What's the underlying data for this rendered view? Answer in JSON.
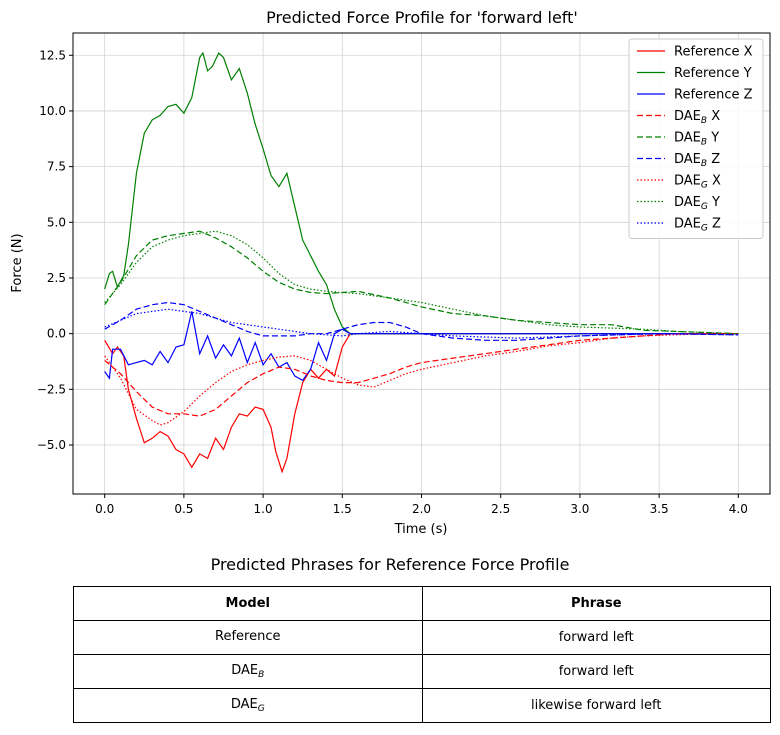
{
  "chart_data": {
    "type": "line",
    "title": "Predicted Force Profile for 'forward left'",
    "xlabel": "Time (s)",
    "ylabel": "Force (N)",
    "xlim": [
      -0.2,
      4.2
    ],
    "ylim": [
      -7.2,
      13.5
    ],
    "xticks": [
      0.0,
      0.5,
      1.0,
      1.5,
      2.0,
      2.5,
      3.0,
      3.5,
      4.0
    ],
    "xtick_labels": [
      "0.0",
      "0.5",
      "1.0",
      "1.5",
      "2.0",
      "2.5",
      "3.0",
      "3.5",
      "4.0"
    ],
    "yticks": [
      -5.0,
      -2.5,
      0.0,
      2.5,
      5.0,
      7.5,
      10.0,
      12.5
    ],
    "ytick_labels": [
      "−5.0",
      "−2.5",
      "0.0",
      "2.5",
      "5.0",
      "7.5",
      "10.0",
      "12.5"
    ],
    "grid": true,
    "legend_position": "top-right",
    "series": [
      {
        "name": "Reference X",
        "legend": {
          "base": "Reference X",
          "sub": "",
          "suffix": ""
        },
        "color": "#ff0000",
        "dash": "solid",
        "x": [
          0.0,
          0.05,
          0.08,
          0.12,
          0.15,
          0.2,
          0.25,
          0.3,
          0.35,
          0.4,
          0.45,
          0.5,
          0.55,
          0.6,
          0.65,
          0.7,
          0.75,
          0.8,
          0.85,
          0.9,
          0.95,
          1.0,
          1.05,
          1.08,
          1.12,
          1.15,
          1.2,
          1.25,
          1.3,
          1.35,
          1.4,
          1.45,
          1.5,
          1.55,
          1.6,
          1.8,
          2.0,
          2.5,
          3.0,
          3.5,
          4.0
        ],
        "y": [
          -0.3,
          -0.9,
          -0.6,
          -1.0,
          -2.5,
          -3.8,
          -4.9,
          -4.7,
          -4.4,
          -4.6,
          -5.2,
          -5.4,
          -6.0,
          -5.4,
          -5.6,
          -4.7,
          -5.2,
          -4.2,
          -3.6,
          -3.7,
          -3.3,
          -3.4,
          -4.2,
          -5.3,
          -6.2,
          -5.6,
          -3.6,
          -2.2,
          -1.6,
          -2.0,
          -1.6,
          -1.9,
          -0.6,
          0.0,
          0.0,
          0.0,
          0.0,
          0.0,
          0.0,
          0.0,
          0.0
        ]
      },
      {
        "name": "Reference Y",
        "legend": {
          "base": "Reference Y",
          "sub": "",
          "suffix": ""
        },
        "color": "#008000",
        "dash": "solid",
        "x": [
          0.0,
          0.03,
          0.05,
          0.08,
          0.12,
          0.15,
          0.2,
          0.25,
          0.3,
          0.35,
          0.4,
          0.45,
          0.5,
          0.55,
          0.6,
          0.62,
          0.65,
          0.68,
          0.72,
          0.75,
          0.8,
          0.85,
          0.9,
          0.95,
          1.0,
          1.05,
          1.1,
          1.15,
          1.2,
          1.25,
          1.3,
          1.35,
          1.4,
          1.45,
          1.5,
          1.55,
          1.6,
          1.8,
          2.0,
          2.5,
          3.0,
          3.5,
          4.0
        ],
        "y": [
          2.0,
          2.7,
          2.8,
          2.1,
          2.6,
          4.0,
          7.2,
          9.0,
          9.6,
          9.8,
          10.2,
          10.3,
          9.9,
          10.6,
          12.4,
          12.6,
          11.8,
          12.0,
          12.6,
          12.4,
          11.4,
          11.9,
          10.8,
          9.4,
          8.3,
          7.1,
          6.6,
          7.2,
          5.7,
          4.2,
          3.5,
          2.8,
          2.2,
          1.1,
          0.3,
          0.0,
          0.0,
          0.0,
          0.0,
          0.0,
          0.0,
          0.0,
          0.0
        ]
      },
      {
        "name": "Reference Z",
        "legend": {
          "base": "Reference Z",
          "sub": "",
          "suffix": ""
        },
        "color": "#0000ff",
        "dash": "solid",
        "x": [
          0.0,
          0.03,
          0.05,
          0.1,
          0.15,
          0.2,
          0.25,
          0.3,
          0.35,
          0.4,
          0.45,
          0.5,
          0.55,
          0.6,
          0.65,
          0.7,
          0.75,
          0.8,
          0.85,
          0.9,
          0.95,
          1.0,
          1.05,
          1.1,
          1.15,
          1.2,
          1.25,
          1.3,
          1.35,
          1.4,
          1.45,
          1.5,
          1.55,
          1.6,
          2.0,
          2.5,
          3.0,
          3.5,
          4.0
        ],
        "y": [
          -1.7,
          -2.0,
          -0.7,
          -0.7,
          -1.4,
          -1.3,
          -1.2,
          -1.4,
          -0.8,
          -1.3,
          -0.6,
          -0.5,
          1.0,
          -0.9,
          -0.1,
          -1.1,
          -0.5,
          -1.0,
          -0.2,
          -1.3,
          -0.4,
          -1.4,
          -0.9,
          -1.5,
          -1.3,
          -1.9,
          -2.1,
          -1.6,
          -0.4,
          -1.2,
          0.0,
          0.2,
          0.0,
          0.0,
          0.0,
          0.0,
          0.0,
          0.0,
          0.0
        ]
      },
      {
        "name": "DAE_B X",
        "legend": {
          "base": "DAE",
          "sub": "B",
          "suffix": " X"
        },
        "color": "#ff0000",
        "dash": "6,3",
        "x": [
          0.0,
          0.1,
          0.2,
          0.3,
          0.4,
          0.5,
          0.6,
          0.7,
          0.8,
          0.9,
          1.0,
          1.1,
          1.2,
          1.3,
          1.4,
          1.5,
          1.6,
          1.7,
          1.8,
          1.9,
          2.0,
          2.2,
          2.4,
          2.6,
          2.8,
          3.0,
          3.2,
          3.4,
          3.6,
          3.8,
          4.0
        ],
        "y": [
          -1.2,
          -1.8,
          -2.6,
          -3.3,
          -3.6,
          -3.6,
          -3.7,
          -3.4,
          -2.8,
          -2.2,
          -1.8,
          -1.5,
          -1.6,
          -1.9,
          -2.1,
          -2.2,
          -2.2,
          -2.0,
          -1.8,
          -1.5,
          -1.3,
          -1.1,
          -0.9,
          -0.7,
          -0.5,
          -0.3,
          -0.2,
          -0.1,
          0.0,
          0.0,
          0.0
        ]
      },
      {
        "name": "DAE_B Y",
        "legend": {
          "base": "DAE",
          "sub": "B",
          "suffix": " Y"
        },
        "color": "#008000",
        "dash": "6,3",
        "x": [
          0.0,
          0.1,
          0.2,
          0.3,
          0.4,
          0.5,
          0.6,
          0.7,
          0.8,
          0.9,
          1.0,
          1.1,
          1.2,
          1.3,
          1.4,
          1.5,
          1.6,
          1.8,
          2.0,
          2.2,
          2.4,
          2.6,
          2.8,
          3.0,
          3.2,
          3.4,
          3.6,
          3.8,
          4.0
        ],
        "y": [
          1.3,
          2.3,
          3.5,
          4.2,
          4.4,
          4.5,
          4.6,
          4.3,
          3.9,
          3.4,
          2.8,
          2.3,
          2.0,
          1.85,
          1.8,
          1.85,
          1.9,
          1.6,
          1.2,
          0.9,
          0.8,
          0.6,
          0.5,
          0.4,
          0.4,
          0.15,
          0.1,
          0.05,
          0.0
        ]
      },
      {
        "name": "DAE_B Z",
        "legend": {
          "base": "DAE",
          "sub": "B",
          "suffix": " Z"
        },
        "color": "#0000ff",
        "dash": "6,3",
        "x": [
          0.0,
          0.1,
          0.2,
          0.3,
          0.4,
          0.5,
          0.6,
          0.7,
          0.8,
          0.9,
          1.0,
          1.1,
          1.2,
          1.3,
          1.4,
          1.5,
          1.6,
          1.7,
          1.8,
          1.9,
          2.0,
          2.2,
          2.4,
          2.6,
          2.8,
          3.0,
          3.5,
          4.0
        ],
        "y": [
          0.2,
          0.6,
          1.1,
          1.3,
          1.4,
          1.3,
          1.0,
          0.7,
          0.4,
          0.1,
          -0.1,
          -0.1,
          -0.1,
          0.0,
          0.0,
          0.2,
          0.4,
          0.5,
          0.5,
          0.3,
          0.0,
          -0.2,
          -0.3,
          -0.3,
          -0.2,
          -0.1,
          0.0,
          -0.05
        ]
      },
      {
        "name": "DAE_G X",
        "legend": {
          "base": "DAE",
          "sub": "G",
          "suffix": " X"
        },
        "color": "#ff0000",
        "dash": "1.5,2",
        "x": [
          0.0,
          0.1,
          0.2,
          0.3,
          0.35,
          0.4,
          0.5,
          0.6,
          0.7,
          0.8,
          0.9,
          1.0,
          1.1,
          1.2,
          1.3,
          1.4,
          1.5,
          1.6,
          1.7,
          1.8,
          1.9,
          2.0,
          2.2,
          2.4,
          2.6,
          2.8,
          3.0,
          3.2,
          3.4,
          3.6,
          3.8,
          4.0
        ],
        "y": [
          -1.0,
          -2.0,
          -3.4,
          -3.9,
          -4.1,
          -4.0,
          -3.5,
          -2.8,
          -2.2,
          -1.7,
          -1.4,
          -1.2,
          -1.05,
          -1.0,
          -1.2,
          -1.6,
          -2.0,
          -2.3,
          -2.4,
          -2.1,
          -1.8,
          -1.6,
          -1.3,
          -1.0,
          -0.8,
          -0.55,
          -0.4,
          -0.2,
          -0.1,
          -0.05,
          0.0,
          0.0
        ]
      },
      {
        "name": "DAE_G Y",
        "legend": {
          "base": "DAE",
          "sub": "G",
          "suffix": " Y"
        },
        "color": "#008000",
        "dash": "1.5,2",
        "x": [
          0.0,
          0.1,
          0.2,
          0.3,
          0.4,
          0.5,
          0.6,
          0.7,
          0.8,
          0.9,
          1.0,
          1.1,
          1.2,
          1.3,
          1.4,
          1.5,
          1.6,
          1.8,
          2.0,
          2.2,
          2.4,
          2.6,
          2.8,
          3.0,
          3.2,
          3.4,
          3.6,
          3.8,
          4.0
        ],
        "y": [
          1.4,
          2.2,
          3.2,
          3.9,
          4.2,
          4.4,
          4.5,
          4.6,
          4.4,
          4.0,
          3.4,
          2.7,
          2.2,
          2.0,
          1.9,
          1.85,
          1.8,
          1.6,
          1.4,
          1.1,
          0.8,
          0.6,
          0.4,
          0.3,
          0.25,
          0.2,
          0.1,
          0.05,
          0.0
        ]
      },
      {
        "name": "DAE_G Z",
        "legend": {
          "base": "DAE",
          "sub": "G",
          "suffix": " Z"
        },
        "color": "#0000ff",
        "dash": "1.5,2",
        "x": [
          0.0,
          0.1,
          0.2,
          0.3,
          0.4,
          0.5,
          0.6,
          0.7,
          0.8,
          0.9,
          1.0,
          1.1,
          1.2,
          1.3,
          1.4,
          1.5,
          1.6,
          1.8,
          2.0,
          2.2,
          2.4,
          2.6,
          2.8,
          3.0,
          3.5,
          4.0
        ],
        "y": [
          0.3,
          0.6,
          0.9,
          1.0,
          1.1,
          1.0,
          0.9,
          0.7,
          0.5,
          0.4,
          0.3,
          0.2,
          0.1,
          0.0,
          -0.05,
          -0.1,
          0.0,
          0.1,
          0.0,
          -0.1,
          -0.15,
          -0.2,
          -0.15,
          -0.1,
          0.0,
          -0.05
        ]
      }
    ]
  },
  "table": {
    "title": "Predicted Phrases for Reference Force Profile",
    "headers": [
      "Model",
      "Phrase"
    ],
    "rows": [
      {
        "model": "Reference",
        "model_sub": "",
        "phrase": "forward left"
      },
      {
        "model": "DAE",
        "model_sub": "B",
        "phrase": "forward left"
      },
      {
        "model": "DAE",
        "model_sub": "G",
        "phrase": "likewise forward left"
      }
    ]
  }
}
